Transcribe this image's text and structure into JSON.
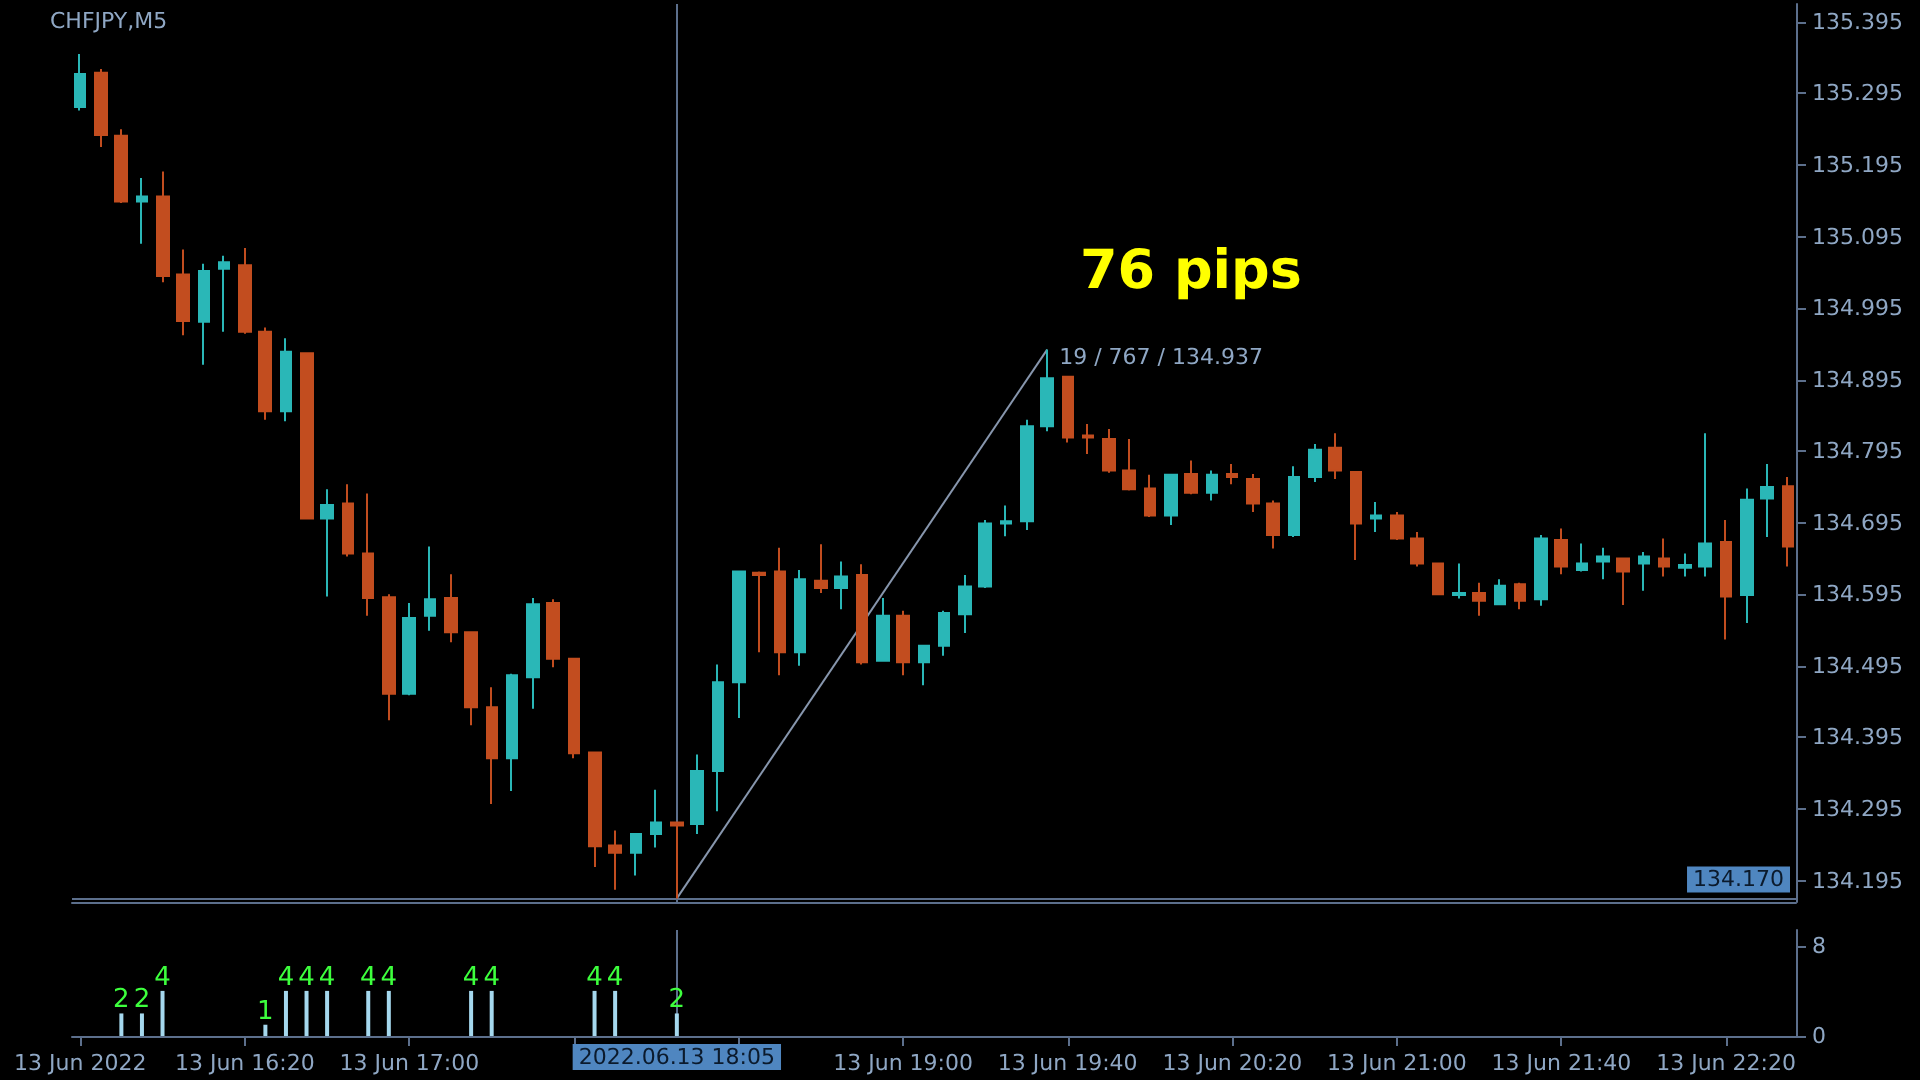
{
  "chart_data": [
    {
      "type": "candlestick",
      "title": "CHFJPY,M5",
      "annotations": [
        "76 pips",
        {
          "text": "19 / 767 / 134.937",
          "x": "2022-06-13T19:35",
          "y": 134.937
        }
      ],
      "xlim": [
        "2022-06-13T15:38",
        "2022-06-13T22:37"
      ],
      "ylim": [
        134.165,
        135.42
      ],
      "yticks": [
        134.195,
        134.295,
        134.395,
        134.495,
        134.595,
        134.695,
        134.795,
        134.895,
        134.995,
        135.095,
        135.195,
        135.295,
        135.395
      ],
      "tick_labels": "y",
      "ref_lines": [
        {
          "axis": "x",
          "value": "2022-06-13T18:05",
          "label": null,
          "color": "#5c6f8c"
        },
        {
          "axis": "y",
          "value": 134.17,
          "label": "134.170",
          "color": "#5c6f8c"
        }
      ],
      "series": [
        {
          "x": [
            "2022-06-13T15:40",
            "2022-06-13T15:45",
            "2022-06-13T15:50",
            "2022-06-13T15:55",
            "2022-06-13T16:00",
            "2022-06-13T16:05",
            "2022-06-13T16:10",
            "2022-06-13T16:15",
            "2022-06-13T16:20",
            "2022-06-13T16:25",
            "2022-06-13T16:30",
            "2022-06-13T16:35",
            "2022-06-13T16:40",
            "2022-06-13T16:45",
            "2022-06-13T16:50",
            "2022-06-13T16:55",
            "2022-06-13T17:00",
            "2022-06-13T17:05",
            "2022-06-13T17:10",
            "2022-06-13T17:15",
            "2022-06-13T17:20",
            "2022-06-13T17:25",
            "2022-06-13T17:30",
            "2022-06-13T17:35",
            "2022-06-13T17:40",
            "2022-06-13T17:45",
            "2022-06-13T17:50",
            "2022-06-13T17:55",
            "2022-06-13T18:00",
            "2022-06-13T18:05",
            "2022-06-13T18:10",
            "2022-06-13T18:15",
            "2022-06-13T18:20",
            "2022-06-13T18:25",
            "2022-06-13T18:30",
            "2022-06-13T18:35",
            "2022-06-13T18:40",
            "2022-06-13T18:45",
            "2022-06-13T18:50",
            "2022-06-13T18:55",
            "2022-06-13T19:00",
            "2022-06-13T19:05",
            "2022-06-13T19:10",
            "2022-06-13T19:15",
            "2022-06-13T19:20",
            "2022-06-13T19:25",
            "2022-06-13T19:30",
            "2022-06-13T19:35",
            "2022-06-13T19:40",
            "2022-06-13T19:45",
            "2022-06-13T19:50",
            "2022-06-13T19:55",
            "2022-06-13T20:00",
            "2022-06-13T20:05",
            "2022-06-13T20:10",
            "2022-06-13T20:15",
            "2022-06-13T20:20",
            "2022-06-13T20:25",
            "2022-06-13T20:30",
            "2022-06-13T20:35",
            "2022-06-13T20:40",
            "2022-06-13T20:45",
            "2022-06-13T20:50",
            "2022-06-13T20:55",
            "2022-06-13T21:00",
            "2022-06-13T21:05",
            "2022-06-13T21:10",
            "2022-06-13T21:15",
            "2022-06-13T21:20",
            "2022-06-13T21:25",
            "2022-06-13T21:30",
            "2022-06-13T21:35",
            "2022-06-13T21:40",
            "2022-06-13T21:45",
            "2022-06-13T21:50",
            "2022-06-13T21:55",
            "2022-06-13T22:00",
            "2022-06-13T22:05",
            "2022-06-13T22:10",
            "2022-06-13T22:15",
            "2022-06-13T22:20",
            "2022-06-13T22:25",
            "2022-06-13T22:30",
            "2022-06-13T22:35"
          ],
          "ohlc": [
            [
              135.276,
              135.35,
              135.271,
              135.322
            ],
            [
              135.324,
              135.329,
              135.22,
              135.237
            ],
            [
              135.236,
              135.245,
              135.142,
              135.144
            ],
            [
              135.144,
              135.177,
              135.085,
              135.151
            ],
            [
              135.151,
              135.186,
              135.031,
              135.04
            ],
            [
              135.042,
              135.077,
              134.957,
              134.977
            ],
            [
              134.976,
              135.057,
              134.916,
              135.047
            ],
            [
              135.05,
              135.068,
              134.962,
              135.059
            ],
            [
              135.055,
              135.079,
              134.959,
              134.962
            ],
            [
              134.962,
              134.968,
              134.839,
              134.851
            ],
            [
              134.851,
              134.953,
              134.837,
              134.934
            ],
            [
              134.932,
              134.932,
              134.701,
              134.701
            ],
            [
              134.701,
              134.742,
              134.592,
              134.72
            ],
            [
              134.722,
              134.749,
              134.648,
              134.652
            ],
            [
              134.652,
              134.736,
              134.565,
              134.59
            ],
            [
              134.591,
              134.595,
              134.419,
              134.456
            ],
            [
              134.456,
              134.583,
              134.454,
              134.562
            ],
            [
              134.565,
              134.662,
              134.544,
              134.588
            ],
            [
              134.59,
              134.623,
              134.528,
              134.542
            ],
            [
              134.542,
              134.542,
              134.412,
              134.437
            ],
            [
              134.437,
              134.465,
              134.302,
              134.366
            ],
            [
              134.366,
              134.484,
              134.32,
              134.482
            ],
            [
              134.479,
              134.59,
              134.435,
              134.581
            ],
            [
              134.583,
              134.588,
              134.493,
              134.505
            ],
            [
              134.505,
              134.505,
              134.366,
              134.373
            ],
            [
              134.374,
              134.375,
              134.214,
              134.243
            ],
            [
              134.244,
              134.265,
              134.182,
              134.234
            ],
            [
              134.234,
              134.26,
              134.202,
              134.26
            ],
            [
              134.26,
              134.322,
              134.241,
              134.276
            ],
            [
              134.276,
              134.276,
              134.17,
              134.272
            ],
            [
              134.274,
              134.371,
              134.26,
              134.348
            ],
            [
              134.348,
              134.497,
              134.292,
              134.472
            ],
            [
              134.472,
              134.627,
              134.422,
              134.627
            ],
            [
              134.625,
              134.627,
              134.514,
              134.622
            ],
            [
              134.627,
              134.66,
              134.482,
              134.514
            ],
            [
              134.514,
              134.629,
              134.495,
              134.616
            ],
            [
              134.614,
              134.665,
              134.597,
              134.604
            ],
            [
              134.604,
              134.641,
              134.574,
              134.62
            ],
            [
              134.622,
              134.637,
              134.497,
              134.5
            ],
            [
              134.502,
              134.59,
              134.502,
              134.565
            ],
            [
              134.565,
              134.572,
              134.482,
              134.5
            ],
            [
              134.5,
              134.524,
              134.468,
              134.523
            ],
            [
              134.523,
              134.572,
              134.509,
              134.569
            ],
            [
              134.567,
              134.622,
              134.541,
              134.606
            ],
            [
              134.606,
              134.699,
              134.604,
              134.694
            ],
            [
              134.694,
              134.719,
              134.676,
              134.697
            ],
            [
              134.697,
              134.839,
              134.685,
              134.83
            ],
            [
              134.83,
              134.937,
              134.823,
              134.897
            ],
            [
              134.899,
              134.899,
              134.807,
              134.814
            ],
            [
              134.817,
              134.833,
              134.791,
              134.814
            ],
            [
              134.812,
              134.826,
              134.765,
              134.768
            ],
            [
              134.768,
              134.812,
              134.74,
              134.742
            ],
            [
              134.743,
              134.762,
              134.703,
              134.705
            ],
            [
              134.705,
              134.762,
              134.692,
              134.762
            ],
            [
              134.763,
              134.782,
              134.735,
              134.737
            ],
            [
              134.737,
              134.768,
              134.726,
              134.762
            ],
            [
              134.763,
              134.777,
              134.749,
              134.759
            ],
            [
              134.756,
              134.763,
              134.71,
              134.722
            ],
            [
              134.722,
              134.726,
              134.659,
              134.678
            ],
            [
              134.678,
              134.774,
              134.675,
              134.759
            ],
            [
              134.759,
              134.805,
              134.752,
              134.797
            ],
            [
              134.8,
              134.82,
              134.756,
              134.768
            ],
            [
              134.766,
              134.766,
              134.643,
              134.694
            ],
            [
              134.701,
              134.724,
              134.682,
              134.705
            ],
            [
              134.705,
              134.71,
              134.671,
              134.673
            ],
            [
              134.673,
              134.682,
              134.634,
              134.638
            ],
            [
              134.638,
              134.638,
              134.595,
              134.595
            ],
            [
              134.594,
              134.638,
              134.589,
              134.597
            ],
            [
              134.597,
              134.611,
              134.565,
              134.586
            ],
            [
              134.581,
              134.616,
              134.58,
              134.607
            ],
            [
              134.609,
              134.611,
              134.574,
              134.586
            ],
            [
              134.588,
              134.678,
              134.579,
              134.673
            ],
            [
              134.671,
              134.687,
              134.623,
              134.634
            ],
            [
              134.629,
              134.666,
              134.627,
              134.638
            ],
            [
              134.641,
              134.66,
              134.616,
              134.648
            ],
            [
              134.645,
              134.645,
              134.58,
              134.627
            ],
            [
              134.638,
              134.654,
              134.6,
              134.648
            ],
            [
              134.645,
              134.673,
              134.62,
              134.634
            ],
            [
              134.632,
              134.652,
              134.62,
              134.636
            ],
            [
              134.634,
              134.82,
              134.62,
              134.666
            ],
            [
              134.668,
              134.699,
              134.532,
              134.592
            ],
            [
              134.594,
              134.743,
              134.555,
              134.727
            ],
            [
              134.729,
              134.777,
              134.675,
              134.745
            ],
            [
              134.746,
              134.759,
              134.634,
              134.662
            ]
          ],
          "colors": [
            "#2ab7b7",
            "#c24d1f",
            "#c24d1f",
            "#2ab7b7",
            "#c24d1f",
            "#c24d1f",
            "#2ab7b7",
            "#2ab7b7",
            "#c24d1f",
            "#c24d1f",
            "#2ab7b7",
            "#c24d1f",
            "#2ab7b7",
            "#c24d1f",
            "#c24d1f",
            "#c24d1f",
            "#2ab7b7",
            "#2ab7b7",
            "#c24d1f",
            "#c24d1f",
            "#c24d1f",
            "#2ab7b7",
            "#2ab7b7",
            "#c24d1f",
            "#c24d1f",
            "#c24d1f",
            "#c24d1f",
            "#2ab7b7",
            "#2ab7b7",
            "#c24d1f",
            "#2ab7b7",
            "#2ab7b7",
            "#2ab7b7",
            "#c24d1f",
            "#c24d1f",
            "#2ab7b7",
            "#c24d1f",
            "#2ab7b7",
            "#c24d1f",
            "#2ab7b7",
            "#c24d1f",
            "#2ab7b7",
            "#2ab7b7",
            "#2ab7b7",
            "#2ab7b7",
            "#2ab7b7",
            "#2ab7b7",
            "#2ab7b7",
            "#c24d1f",
            "#c24d1f",
            "#c24d1f",
            "#c24d1f",
            "#c24d1f",
            "#2ab7b7",
            "#c24d1f",
            "#2ab7b7",
            "#c24d1f",
            "#c24d1f",
            "#c24d1f",
            "#2ab7b7",
            "#2ab7b7",
            "#c24d1f",
            "#c24d1f",
            "#2ab7b7",
            "#c24d1f",
            "#c24d1f",
            "#c24d1f",
            "#2ab7b7",
            "#c24d1f",
            "#2ab7b7",
            "#c24d1f",
            "#2ab7b7",
            "#c24d1f",
            "#2ab7b7",
            "#2ab7b7",
            "#c24d1f",
            "#2ab7b7",
            "#c24d1f",
            "#2ab7b7",
            "#2ab7b7",
            "#c24d1f",
            "#2ab7b7",
            "#2ab7b7",
            "#c24d1f"
          ]
        },
        {
          "type": "line",
          "color": "#8796ad",
          "x": [
            "2022-06-13T18:05",
            "2022-06-13T19:35"
          ],
          "values": [
            134.17,
            134.937
          ]
        }
      ]
    },
    {
      "type": "bar",
      "data_labels": true,
      "xlim": [
        "2022-06-13T15:38",
        "2022-06-13T22:37"
      ],
      "xticks": [
        {
          "value": "2022-06-13T15:40",
          "label": "13 Jun 2022"
        },
        {
          "value": "2022-06-13T16:20",
          "label": "13 Jun 16:20"
        },
        {
          "value": "2022-06-13T17:00",
          "label": "13 Jun 17:00"
        },
        {
          "value": "2022-06-13T17:40",
          "label": null
        },
        {
          "value": "2022-06-13T18:20",
          "label": null
        },
        {
          "value": "2022-06-13T19:00",
          "label": "13 Jun 19:00"
        },
        {
          "value": "2022-06-13T19:40",
          "label": "13 Jun 19:40"
        },
        {
          "value": "2022-06-13T20:20",
          "label": "13 Jun 20:20"
        },
        {
          "value": "2022-06-13T21:00",
          "label": "13 Jun 21:00"
        },
        {
          "value": "2022-06-13T21:40",
          "label": "13 Jun 21:40"
        },
        {
          "value": "2022-06-13T22:20",
          "label": "13 Jun 22:20"
        }
      ],
      "ylim": [
        0,
        9.4
      ],
      "yticks": [
        0,
        8
      ],
      "ref_lines": [
        {
          "axis": "x",
          "value": "2022-06-13T18:05",
          "label": "2022.06.13 18:05",
          "color": "#5c6f8c"
        }
      ],
      "series": [
        {
          "color": "#a5d8ee",
          "x": [
            "2022-06-13T15:50",
            "2022-06-13T15:55",
            "2022-06-13T16:00",
            "2022-06-13T16:25",
            "2022-06-13T16:30",
            "2022-06-13T16:35",
            "2022-06-13T16:40",
            "2022-06-13T16:50",
            "2022-06-13T16:55",
            "2022-06-13T17:15",
            "2022-06-13T17:20",
            "2022-06-13T17:45",
            "2022-06-13T17:50",
            "2022-06-13T18:05"
          ],
          "values": [
            2,
            2,
            4,
            1,
            4,
            4,
            4,
            4,
            4,
            4,
            4,
            4,
            4,
            2
          ]
        }
      ]
    }
  ]
}
